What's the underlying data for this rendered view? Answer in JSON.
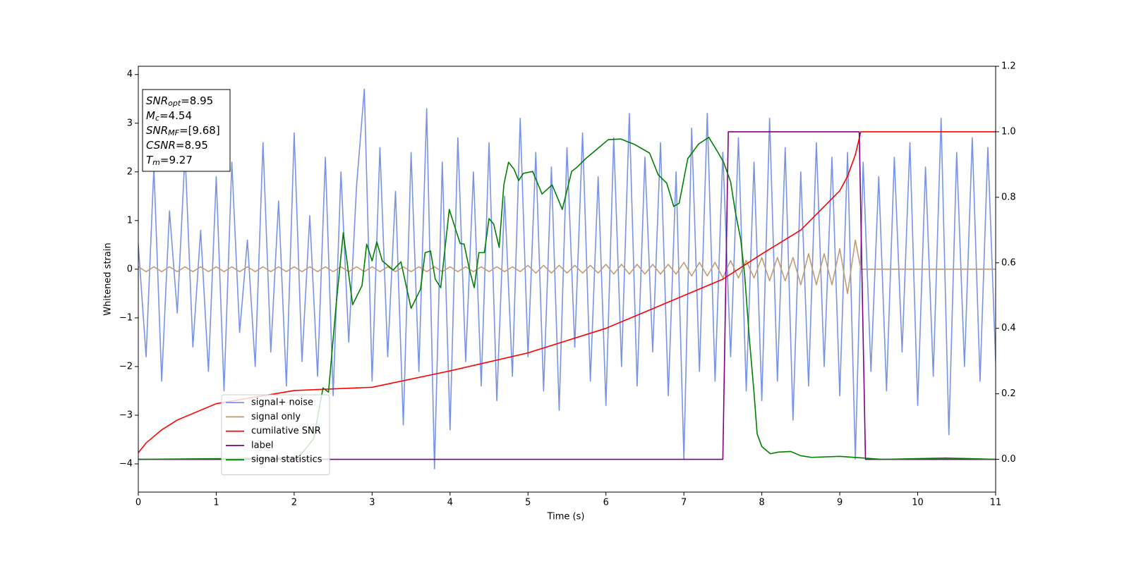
{
  "chart_data": {
    "type": "line",
    "xlabel": "Time (s)",
    "ylabel": "Whitened strain",
    "xlim": [
      0,
      11
    ],
    "xticks": [
      0,
      1,
      2,
      3,
      4,
      5,
      6,
      7,
      8,
      9,
      10,
      11
    ],
    "ylim": [
      -4.58,
      4.17
    ],
    "yticks": [
      {
        "value": -4,
        "label": "−4"
      },
      {
        "value": -3,
        "label": "−3"
      },
      {
        "value": -2,
        "label": "−2"
      },
      {
        "value": -1,
        "label": "−1"
      },
      0,
      1,
      2,
      3,
      4
    ],
    "y2lim": [
      -0.1,
      1.2
    ],
    "y2ticks": [
      {
        "value": 0,
        "label": "0.0"
      },
      0.2,
      0.4,
      0.6,
      0.8,
      {
        "value": 1,
        "label": "1.0"
      },
      1.2
    ],
    "legend": "lower left",
    "annotations": [
      {
        "text": "SNR",
        "sub": "opt",
        "value": "=8.95"
      },
      {
        "text": "M",
        "sub": "c",
        "value": "=4.54"
      },
      {
        "text": "SNR",
        "sub": "MF",
        "value": "=[9.68]"
      },
      {
        "text": "CSNR",
        "value": "=8.95"
      },
      {
        "text": "T",
        "sub": "m",
        "value": "=9.27"
      }
    ],
    "series": [
      {
        "name": "signal+ noise",
        "color": "#7893e8",
        "x": [
          0,
          0.1,
          0.2,
          0.3,
          0.4,
          0.5,
          0.6,
          0.7,
          0.8,
          0.9,
          1,
          1.1,
          1.2,
          1.3,
          1.4,
          1.5,
          1.6,
          1.7,
          1.8,
          1.9,
          2,
          2.1,
          2.2,
          2.3,
          2.4,
          2.5,
          2.6,
          2.7,
          2.8,
          2.9,
          3,
          3.1,
          3.2,
          3.3,
          3.4,
          3.5,
          3.6,
          3.7,
          3.8,
          3.9,
          4,
          4.1,
          4.2,
          4.3,
          4.4,
          4.5,
          4.6,
          4.7,
          4.8,
          4.9,
          5,
          5.1,
          5.2,
          5.3,
          5.4,
          5.5,
          5.6,
          5.7,
          5.8,
          5.9,
          6,
          6.1,
          6.2,
          6.3,
          6.4,
          6.5,
          6.6,
          6.7,
          6.8,
          6.9,
          7,
          7.1,
          7.2,
          7.3,
          7.4,
          7.5,
          7.6,
          7.7,
          7.8,
          7.9,
          8,
          8.1,
          8.2,
          8.3,
          8.4,
          8.5,
          8.6,
          8.7,
          8.8,
          8.9,
          9,
          9.1,
          9.2,
          9.3,
          9.4,
          9.5,
          9.6,
          9.7,
          9.8,
          9.9,
          10,
          10.1,
          10.2,
          10.3,
          10.4,
          10.5,
          10.6,
          10.7,
          10.8,
          10.9,
          11
        ],
        "values": [
          0.5,
          -1.8,
          2.1,
          -2.3,
          1.2,
          -0.9,
          2.4,
          -1.6,
          0.8,
          -2.1,
          1.9,
          -2.5,
          2.2,
          -1.3,
          0.6,
          -2.0,
          2.6,
          -1.7,
          1.4,
          -2.4,
          2.8,
          -1.9,
          1.1,
          -2.2,
          2.3,
          -2.6,
          2.0,
          -1.5,
          1.7,
          3.7,
          -2.3,
          2.5,
          -1.8,
          1.6,
          -3.2,
          2.4,
          -2.1,
          3.3,
          -4.1,
          2.2,
          -3.3,
          2.7,
          -1.9,
          2.0,
          -2.4,
          2.6,
          -2.7,
          1.5,
          -2.2,
          3.1,
          -1.8,
          2.4,
          -2.5,
          2.1,
          -2.9,
          2.5,
          -1.6,
          2.8,
          -2.3,
          1.9,
          -2.8,
          2.7,
          -2.0,
          3.2,
          -2.4,
          2.3,
          -1.7,
          2.6,
          -2.6,
          2.0,
          -3.9,
          2.9,
          -2.1,
          3.2,
          -2.3,
          2.4,
          -1.8,
          2.7,
          -2.5,
          2.2,
          -2.7,
          3.1,
          -2.3,
          2.5,
          -3.1,
          2.0,
          -2.4,
          2.6,
          -2.0,
          2.3,
          -2.6,
          2.4,
          -3.9,
          2.2,
          -2.1,
          1.9,
          -2.5,
          2.3,
          -1.7,
          2.6,
          -2.8,
          2.1,
          -2.2,
          3.1,
          -3.4,
          2.4,
          -2.0,
          2.7,
          -2.3,
          2.5,
          -1.9
        ]
      },
      {
        "name": "signal only",
        "color": "#c49c72",
        "x": [
          0,
          0.1,
          0.2,
          0.3,
          0.4,
          0.5,
          0.6,
          0.7,
          0.8,
          0.9,
          1,
          1.1,
          1.2,
          1.3,
          1.4,
          1.5,
          1.6,
          1.7,
          1.8,
          1.9,
          2,
          2.1,
          2.2,
          2.3,
          2.4,
          2.5,
          2.6,
          2.7,
          2.8,
          2.9,
          3,
          3.1,
          3.2,
          3.3,
          3.4,
          3.5,
          3.6,
          3.7,
          3.8,
          3.9,
          4,
          4.1,
          4.2,
          4.3,
          4.4,
          4.5,
          4.6,
          4.7,
          4.8,
          4.9,
          5,
          5.1,
          5.2,
          5.3,
          5.4,
          5.5,
          5.6,
          5.7,
          5.8,
          5.9,
          6,
          6.1,
          6.2,
          6.3,
          6.4,
          6.5,
          6.6,
          6.7,
          6.8,
          6.9,
          7,
          7.1,
          7.2,
          7.3,
          7.4,
          7.5,
          7.6,
          7.7,
          7.8,
          7.9,
          8,
          8.1,
          8.2,
          8.3,
          8.4,
          8.5,
          8.6,
          8.7,
          8.8,
          8.9,
          9,
          9.1,
          9.2,
          9.27,
          9.3,
          11
        ],
        "values": [
          0.05,
          -0.05,
          0.05,
          -0.05,
          0.05,
          -0.05,
          0.05,
          -0.05,
          0.05,
          -0.05,
          0.05,
          -0.05,
          0.05,
          -0.05,
          0.05,
          -0.05,
          0.05,
          -0.05,
          0.05,
          -0.05,
          0.05,
          -0.05,
          0.05,
          -0.05,
          0.05,
          -0.05,
          0.05,
          -0.05,
          0.05,
          -0.05,
          0.05,
          -0.05,
          0.05,
          -0.05,
          0.05,
          -0.05,
          0.05,
          -0.05,
          0.05,
          -0.05,
          0.05,
          -0.05,
          0.05,
          -0.05,
          0.05,
          -0.05,
          0.05,
          -0.05,
          0.05,
          -0.05,
          0.08,
          -0.08,
          0.08,
          -0.08,
          0.08,
          -0.08,
          0.08,
          -0.08,
          0.08,
          -0.08,
          0.1,
          -0.1,
          0.1,
          -0.1,
          0.1,
          -0.1,
          0.1,
          -0.1,
          0.1,
          -0.1,
          0.14,
          -0.14,
          0.14,
          -0.14,
          0.14,
          -0.18,
          0.18,
          -0.18,
          0.18,
          -0.18,
          0.24,
          -0.24,
          0.24,
          -0.24,
          0.24,
          -0.32,
          0.32,
          -0.32,
          0.32,
          -0.32,
          0.42,
          -0.5,
          0.6,
          0,
          0,
          0
        ]
      },
      {
        "name": "cumilative SNR",
        "color": "#ff0000",
        "axis": "y2",
        "x": [
          0,
          0.1,
          0.3,
          0.5,
          1,
          2,
          3,
          4,
          5,
          6,
          7,
          7.5,
          8,
          8.5,
          9,
          9.1,
          9.2,
          9.27,
          11
        ],
        "values": [
          0.02,
          0.05,
          0.09,
          0.12,
          0.17,
          0.21,
          0.22,
          0.27,
          0.325,
          0.4,
          0.5,
          0.55,
          0.627,
          0.7,
          0.82,
          0.864,
          0.93,
          1,
          1
        ]
      },
      {
        "name": "label",
        "color": "#800080",
        "axis": "y2",
        "x": [
          0,
          7.5,
          7.57,
          9.25,
          9.33,
          11
        ],
        "values": [
          0,
          0,
          1,
          1,
          0,
          0
        ]
      },
      {
        "name": "signal statistics",
        "color": "#008000",
        "axis": "y2",
        "x": [
          0,
          2.03,
          2.12,
          2.25,
          2.37,
          2.44,
          2.54,
          2.63,
          2.75,
          2.87,
          2.93,
          3.0,
          3.06,
          3.13,
          3.27,
          3.37,
          3.5,
          3.62,
          3.68,
          3.75,
          3.81,
          3.88,
          3.99,
          4.07,
          4.13,
          4.18,
          4.25,
          4.31,
          4.37,
          4.44,
          4.5,
          4.56,
          4.63,
          4.69,
          4.75,
          4.82,
          4.88,
          4.94,
          5.06,
          5.18,
          5.31,
          5.44,
          5.56,
          5.63,
          5.74,
          5.88,
          6.03,
          6.19,
          6.37,
          6.56,
          6.67,
          6.78,
          6.87,
          6.94,
          7.05,
          7.19,
          7.32,
          7.42,
          7.51,
          7.6,
          7.66,
          7.73,
          7.78,
          7.84,
          7.9,
          7.94,
          8.0,
          8.11,
          8.21,
          8.37,
          8.5,
          8.64,
          9.0,
          9.54,
          10.0,
          10.36,
          11
        ],
        "values": [
          0,
          0.004,
          0.024,
          0.063,
          0.218,
          0.205,
          0.476,
          0.692,
          0.472,
          0.53,
          0.657,
          0.606,
          0.664,
          0.606,
          0.578,
          0.603,
          0.461,
          0.519,
          0.631,
          0.636,
          0.55,
          0.524,
          0.763,
          0.703,
          0.659,
          0.657,
          0.578,
          0.524,
          0.631,
          0.631,
          0.735,
          0.718,
          0.647,
          0.838,
          0.907,
          0.886,
          0.851,
          0.873,
          0.879,
          0.81,
          0.838,
          0.763,
          0.879,
          0.892,
          0.918,
          0.946,
          0.976,
          0.978,
          0.961,
          0.935,
          0.869,
          0.843,
          0.772,
          0.782,
          0.918,
          0.963,
          0.983,
          0.944,
          0.907,
          0.847,
          0.756,
          0.67,
          0.562,
          0.369,
          0.203,
          0.078,
          0.039,
          0.017,
          0.022,
          0.024,
          0.011,
          0.006,
          0.009,
          0,
          0.002,
          0.004,
          0
        ]
      }
    ]
  }
}
